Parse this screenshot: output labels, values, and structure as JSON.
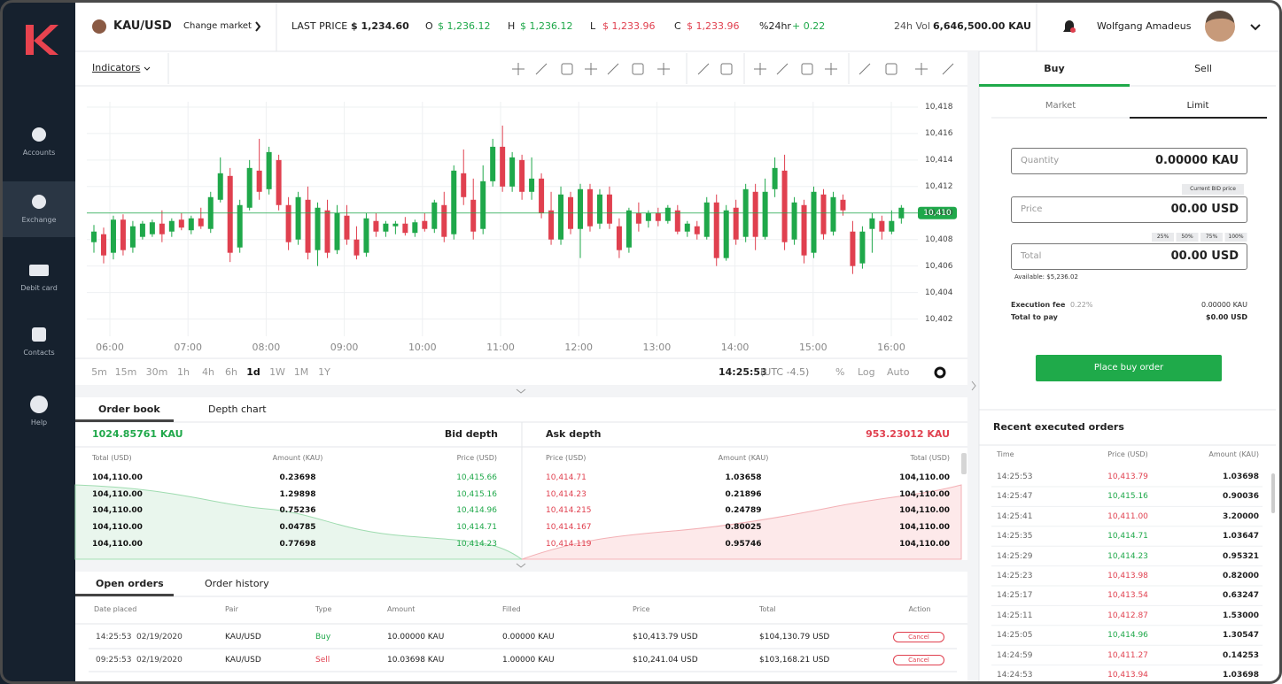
{
  "sidebar": {
    "items": [
      "Accounts",
      "Exchange",
      "Debit card",
      "Contacts",
      "Help"
    ]
  },
  "header": {
    "pair": "KAU/USD",
    "change_market": "Change market",
    "last_price_label": "LAST PRICE",
    "last_price": "$ 1,234.60",
    "open_label": "O",
    "open": "$ 1,236.12",
    "high_label": "H",
    "high": "$ 1,236.12",
    "low_label": "L",
    "low": "$ 1,233.96",
    "close_label": "C",
    "close": "$ 1,233.96",
    "change_label": "%24hr",
    "change": "+ 0.22",
    "vol_label": "24h Vol",
    "vol": "6,646,500.00 KAU",
    "user": "Wolfgang Amadeus"
  },
  "toolbar": {
    "indicators": "Indicators"
  },
  "chart": {
    "type": "candlestick",
    "up_color": "#1fa84a",
    "down_color": "#e0404f",
    "grid": true,
    "ylim": [
      10400.7,
      10419.4
    ],
    "yticks": [
      {
        "value": 10402,
        "label": "10,402"
      },
      {
        "value": 10404,
        "label": "10,404"
      },
      {
        "value": 10406,
        "label": "10,406"
      },
      {
        "value": 10408,
        "label": "10,408"
      },
      {
        "value": 10410,
        "label": "10,410"
      },
      {
        "value": 10412,
        "label": "10,412"
      },
      {
        "value": 10414,
        "label": "10,414"
      },
      {
        "value": 10416,
        "label": "10,416"
      },
      {
        "value": 10418,
        "label": "10,418"
      }
    ],
    "current_price": {
      "value": 10410,
      "label": "10,410"
    },
    "xticks": [
      "06:00",
      "07:00",
      "08:00",
      "09:00",
      "10:00",
      "11:00",
      "12:00",
      "13:00",
      "14:00",
      "15:00",
      "16:00"
    ],
    "candles": [
      [
        10407.8,
        10409.1,
        10407.0,
        10408.6
      ],
      [
        10408.4,
        10408.9,
        10406.2,
        10406.8
      ],
      [
        10407.0,
        10409.8,
        10406.5,
        10409.5
      ],
      [
        10409.5,
        10409.9,
        10406.8,
        10407.2
      ],
      [
        10407.4,
        10409.4,
        10407.0,
        10409.0
      ],
      [
        10408.2,
        10409.4,
        10408.0,
        10409.2
      ],
      [
        10408.4,
        10409.5,
        10408.2,
        10409.3
      ],
      [
        10409.2,
        10410.2,
        10407.8,
        10408.4
      ],
      [
        10408.6,
        10409.6,
        10408.2,
        10409.4
      ],
      [
        10409.5,
        10410.0,
        10408.7,
        10408.9
      ],
      [
        10408.7,
        10409.8,
        10408.4,
        10409.6
      ],
      [
        10409.6,
        10410.4,
        10408.8,
        10409.0
      ],
      [
        10408.8,
        10411.6,
        10408.5,
        10411.2
      ],
      [
        10411.0,
        10414.2,
        10410.8,
        10413.0
      ],
      [
        10412.8,
        10413.4,
        10406.3,
        10407.0
      ],
      [
        10407.4,
        10411.0,
        10407.0,
        10410.6
      ],
      [
        10410.4,
        10414.0,
        10410.2,
        10413.4
      ],
      [
        10413.2,
        10415.6,
        10411.0,
        10411.6
      ],
      [
        10411.8,
        10415.0,
        10411.4,
        10414.6
      ],
      [
        10414.0,
        10414.4,
        10410.2,
        10410.6
      ],
      [
        10410.6,
        10411.2,
        10407.2,
        10407.8
      ],
      [
        10408.0,
        10411.6,
        10407.6,
        10411.2
      ],
      [
        10411.0,
        10412.0,
        10406.5,
        10407.0
      ],
      [
        10407.2,
        10410.8,
        10406.0,
        10410.4
      ],
      [
        10410.2,
        10411.0,
        10406.6,
        10407.0
      ],
      [
        10407.2,
        10410.6,
        10406.9,
        10410.0
      ],
      [
        10409.8,
        10410.6,
        10407.6,
        10408.0
      ],
      [
        10408.0,
        10409.0,
        10406.5,
        10406.8
      ],
      [
        10407.0,
        10410.0,
        10406.7,
        10409.6
      ],
      [
        10409.4,
        10410.0,
        10408.2,
        10408.6
      ],
      [
        10408.6,
        10409.4,
        10408.2,
        10409.2
      ],
      [
        10409.0,
        10409.4,
        10408.4,
        10409.2
      ],
      [
        10409.2,
        10409.7,
        10408.3,
        10408.5
      ],
      [
        10408.5,
        10409.5,
        10408.2,
        10409.3
      ],
      [
        10409.4,
        10410.0,
        10408.6,
        10408.8
      ],
      [
        10408.8,
        10411.0,
        10408.5,
        10410.8
      ],
      [
        10410.6,
        10411.6,
        10407.8,
        10408.2
      ],
      [
        10408.4,
        10413.6,
        10408.0,
        10413.2
      ],
      [
        10413.0,
        10414.8,
        10410.6,
        10411.2
      ],
      [
        10411.0,
        10412.6,
        10408.0,
        10408.6
      ],
      [
        10408.8,
        10413.6,
        10408.4,
        10412.4
      ],
      [
        10412.4,
        10415.6,
        10412.0,
        10415.0
      ],
      [
        10415.0,
        10416.6,
        10411.6,
        10412.0
      ],
      [
        10412.0,
        10414.6,
        10411.6,
        10414.2
      ],
      [
        10414.0,
        10414.4,
        10411.0,
        10411.6
      ],
      [
        10411.6,
        10414.2,
        10411.0,
        10412.6
      ],
      [
        10412.6,
        10413.0,
        10409.6,
        10410.0
      ],
      [
        10410.2,
        10411.6,
        10407.6,
        10408.0
      ],
      [
        10408.0,
        10412.0,
        10407.6,
        10411.4
      ],
      [
        10411.2,
        10411.6,
        10408.4,
        10408.8
      ],
      [
        10408.8,
        10412.2,
        10406.6,
        10411.8
      ],
      [
        10411.8,
        10412.2,
        10408.6,
        10409.0
      ],
      [
        10409.2,
        10411.8,
        10408.8,
        10411.4
      ],
      [
        10411.4,
        10412.0,
        10408.8,
        10409.2
      ],
      [
        10409.0,
        10409.6,
        10406.6,
        10407.2
      ],
      [
        10407.4,
        10410.4,
        10407.0,
        10410.2
      ],
      [
        10410.0,
        10410.8,
        10408.6,
        10409.2
      ],
      [
        10409.4,
        10410.2,
        10408.9,
        10410.0
      ],
      [
        10410.0,
        10410.4,
        10409.0,
        10409.4
      ],
      [
        10409.4,
        10410.6,
        10409.2,
        10410.4
      ],
      [
        10410.2,
        10410.6,
        10408.4,
        10408.6
      ],
      [
        10408.6,
        10409.4,
        10408.2,
        10409.2
      ],
      [
        10409.0,
        10409.4,
        10408.0,
        10408.4
      ],
      [
        10408.2,
        10411.2,
        10408.0,
        10410.8
      ],
      [
        10410.8,
        10411.4,
        10406.0,
        10406.6
      ],
      [
        10406.6,
        10410.6,
        10406.4,
        10410.2
      ],
      [
        10410.4,
        10411.0,
        10407.6,
        10408.0
      ],
      [
        10408.2,
        10412.2,
        10407.8,
        10411.8
      ],
      [
        10411.6,
        10412.2,
        10407.2,
        10408.2
      ],
      [
        10408.2,
        10412.6,
        10408.0,
        10411.6
      ],
      [
        10411.8,
        10414.2,
        10411.2,
        10413.4
      ],
      [
        10413.2,
        10414.4,
        10407.2,
        10407.8
      ],
      [
        10408.0,
        10411.2,
        10407.6,
        10410.8
      ],
      [
        10410.6,
        10411.0,
        10406.2,
        10406.8
      ],
      [
        10407.0,
        10412.0,
        10406.6,
        10411.6
      ],
      [
        10411.4,
        10411.8,
        10408.0,
        10408.4
      ],
      [
        10408.6,
        10411.6,
        10408.3,
        10411.2
      ],
      [
        10411.0,
        10411.4,
        10409.8,
        10410.2
      ],
      [
        10408.6,
        10409.4,
        10405.4,
        10406.0
      ],
      [
        10406.2,
        10409.0,
        10405.8,
        10408.6
      ],
      [
        10408.8,
        10410.0,
        10407.0,
        10409.6
      ],
      [
        10409.4,
        10409.8,
        10408.0,
        10408.6
      ],
      [
        10408.6,
        10410.2,
        10408.4,
        10409.4
      ],
      [
        10409.6,
        10410.6,
        10409.2,
        10410.4
      ]
    ]
  },
  "chart_footer": {
    "intervals": [
      "5m",
      "15m",
      "30m",
      "1h",
      "4h",
      "6h",
      "1d",
      "1W",
      "1M",
      "1Y"
    ],
    "active_interval": 6,
    "time": "14:25:53",
    "timezone": "(UTC -4.5)",
    "percent": "%",
    "log": "Log",
    "auto": "Auto"
  },
  "order_book": {
    "tabs": [
      "Order book",
      "Depth chart"
    ],
    "bid_total": "1024.85761 KAU",
    "bid_title": "Bid depth",
    "ask_title": "Ask depth",
    "ask_total": "953.23012 KAU",
    "bid_columns": [
      "Total (USD)",
      "Amount (KAU)",
      "Price (USD)"
    ],
    "ask_columns": [
      "Price (USD)",
      "Amount (KAU)",
      "Total (USD)"
    ],
    "bids": [
      [
        "104,110.00",
        "0.23698",
        "10,415.66"
      ],
      [
        "104,110.00",
        "1.29898",
        "10,415.16"
      ],
      [
        "104,110.00",
        "0.75236",
        "10,414.96"
      ],
      [
        "104,110.00",
        "0.04785",
        "10,414.71"
      ],
      [
        "104,110.00",
        "0.77698",
        "10,414.23"
      ]
    ],
    "asks": [
      [
        "10,414.71",
        "1.03658",
        "104,110.00"
      ],
      [
        "10,414.23",
        "0.21896",
        "104,110.00"
      ],
      [
        "10,414.215",
        "0.24789",
        "104,110.00"
      ],
      [
        "10,414.167",
        "0.80025",
        "104,110.00"
      ],
      [
        "10,414.119",
        "0.95746",
        "104,110.00"
      ]
    ]
  },
  "orders": {
    "tabs": [
      "Open orders",
      "Order history"
    ],
    "columns": [
      "Date placed",
      "Pair",
      "Type",
      "Amount",
      "Filled",
      "Price",
      "Total",
      "Action"
    ],
    "rows": [
      {
        "time": "14:25:53",
        "date": "02/19/2020",
        "pair": "KAU/USD",
        "type": "Buy",
        "color": "#1fa84a",
        "amount": "10.00000 KAU",
        "filled": "0.00000  KAU",
        "price": "$10,413.79 USD",
        "total": "$104,130.79 USD",
        "action": "Cancel"
      },
      {
        "time": "09:25:53",
        "date": "02/19/2020",
        "pair": "KAU/USD",
        "type": "Sell",
        "color": "#e0404f",
        "amount": "10.03698 KAU",
        "filled": "1.00000 KAU",
        "price": "$10,241.04 USD",
        "total": "$103,168.21 USD",
        "action": "Cancel"
      }
    ]
  },
  "trade": {
    "tabs": [
      "Buy",
      "Sell"
    ],
    "modes": [
      "Market",
      "Limit"
    ],
    "quantity_label": "Quantity",
    "quantity": "0.00000 KAU",
    "bid_tag": "Current BID price",
    "price_label": "Price",
    "price": "00.00 USD",
    "percents": [
      "25%",
      "50%",
      "75%",
      "100%"
    ],
    "total_label": "Total",
    "total": "00.00 USD",
    "available": "Available: $5,236.02",
    "fee_label": "Execution fee",
    "fee_rate": "0.22%",
    "fee": "0.00000 KAU",
    "pay_label": "Total to pay",
    "pay": "$0.00 USD",
    "button": "Place buy order"
  },
  "recent": {
    "title": "Recent executed orders",
    "columns": [
      "Time",
      "Price (USD)",
      "Amount (KAU)"
    ],
    "rows": [
      {
        "time": "14:25:53",
        "price": "10,413.79",
        "color": "#e0404f",
        "amount": "1.03698"
      },
      {
        "time": "14:25:47",
        "price": "10,415.16",
        "color": "#1fa84a",
        "amount": "0.90036"
      },
      {
        "time": "14:25:41",
        "price": "10,411.00",
        "color": "#e0404f",
        "amount": "3.20000"
      },
      {
        "time": "14:25:35",
        "price": "10,414.71",
        "color": "#1fa84a",
        "amount": "1.03647"
      },
      {
        "time": "14:25:29",
        "price": "10,414.23",
        "color": "#1fa84a",
        "amount": "0.95321"
      },
      {
        "time": "14:25:23",
        "price": "10,413.98",
        "color": "#e0404f",
        "amount": "0.82000"
      },
      {
        "time": "14:25:17",
        "price": "10,413.54",
        "color": "#e0404f",
        "amount": "0.63247"
      },
      {
        "time": "14:25:11",
        "price": "10,412.87",
        "color": "#e0404f",
        "amount": "1.53000"
      },
      {
        "time": "14:25:05",
        "price": "10,414.96",
        "color": "#1fa84a",
        "amount": "1.30547"
      },
      {
        "time": "14:24:59",
        "price": "10,411.27",
        "color": "#e0404f",
        "amount": "0.14253"
      },
      {
        "time": "14:24:53",
        "price": "10,413.94",
        "color": "#e0404f",
        "amount": "1.03698"
      }
    ]
  }
}
